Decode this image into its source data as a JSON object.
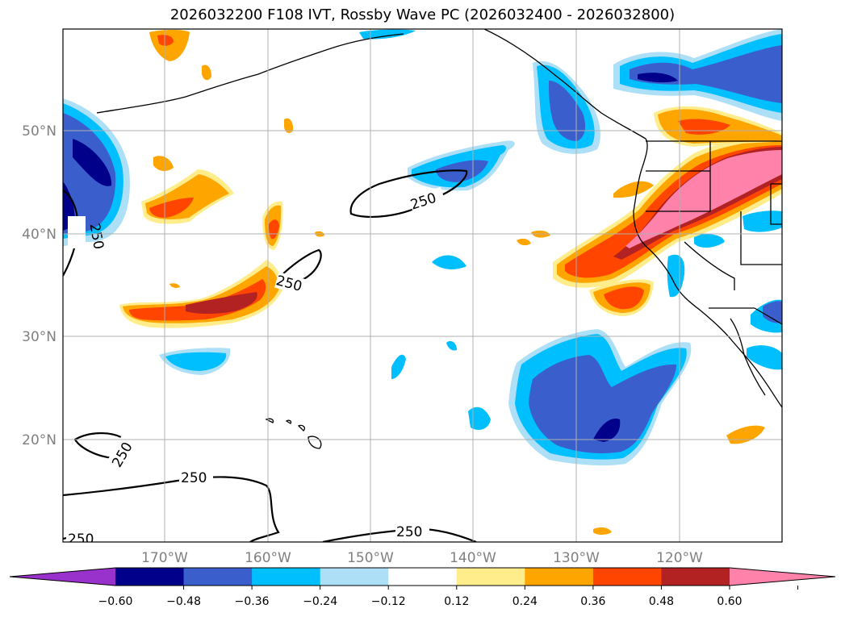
{
  "title": "2026032200 F108 IVT, Rossby Wave PC (2026032400 - 2026032800)",
  "lat_ticks": [
    "50°N",
    "40°N",
    "30°N",
    "20°N"
  ],
  "lon_ticks": [
    "170°W",
    "160°W",
    "150°W",
    "140°W",
    "130°W",
    "120°W"
  ],
  "contour_labels": [
    "250",
    "250",
    "250",
    "250",
    "250",
    "250",
    "250"
  ],
  "colorbar": {
    "ticks": [
      "−0.60",
      "−0.48",
      "−0.36",
      "−0.24",
      "−0.12",
      "0.12",
      "0.24",
      "0.36",
      "0.48",
      "0.60"
    ],
    "colors": [
      "#9932CC",
      "#00008B",
      "#3A5FCD",
      "#00BFFF",
      "#ADDFF7",
      "#FFFFFF",
      "#FFEC8B",
      "#FFA500",
      "#FF4500",
      "#B22222",
      "#FF82AB"
    ]
  }
}
